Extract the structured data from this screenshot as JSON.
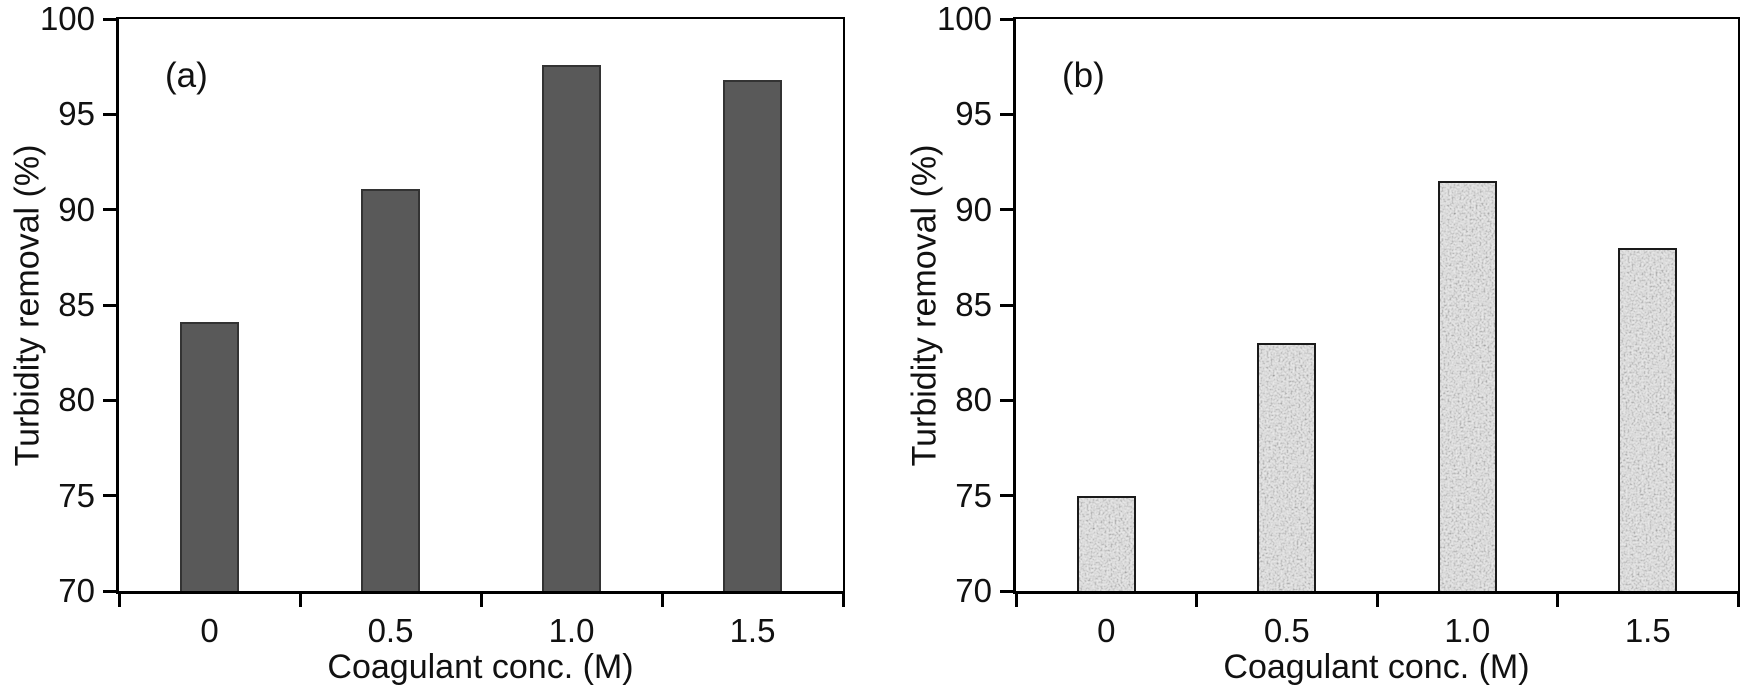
{
  "figure": {
    "background": "#ffffff",
    "axis_color": "#000000",
    "panel_count": 2
  },
  "chart_data": [
    {
      "type": "bar",
      "panel_label": "(a)",
      "title": "",
      "xlabel": "Coagulant conc. (M)",
      "ylabel": "Turbidity removal (%)",
      "categories": [
        "0",
        "0.5",
        "1.0",
        "1.5"
      ],
      "values": [
        84.1,
        91.1,
        97.6,
        96.8
      ],
      "ylim": [
        70,
        100
      ],
      "yticks": [
        70,
        75,
        80,
        85,
        90,
        95,
        100
      ],
      "grid": false,
      "bar_fill": "solid",
      "bar_color": "#595959",
      "bar_border_color": "#333333"
    },
    {
      "type": "bar",
      "panel_label": "(b)",
      "title": "",
      "xlabel": "Coagulant conc. (M)",
      "ylabel": "Turbidity removal (%)",
      "categories": [
        "0",
        "0.5",
        "1.0",
        "1.5"
      ],
      "values": [
        75.0,
        83.0,
        91.5,
        88.0
      ],
      "ylim": [
        70,
        100
      ],
      "yticks": [
        70,
        75,
        80,
        85,
        90,
        95,
        100
      ],
      "grid": false,
      "bar_fill": "speckled",
      "bar_color": "#cfcfcf",
      "bar_border_color": "#1a1a1a"
    }
  ]
}
